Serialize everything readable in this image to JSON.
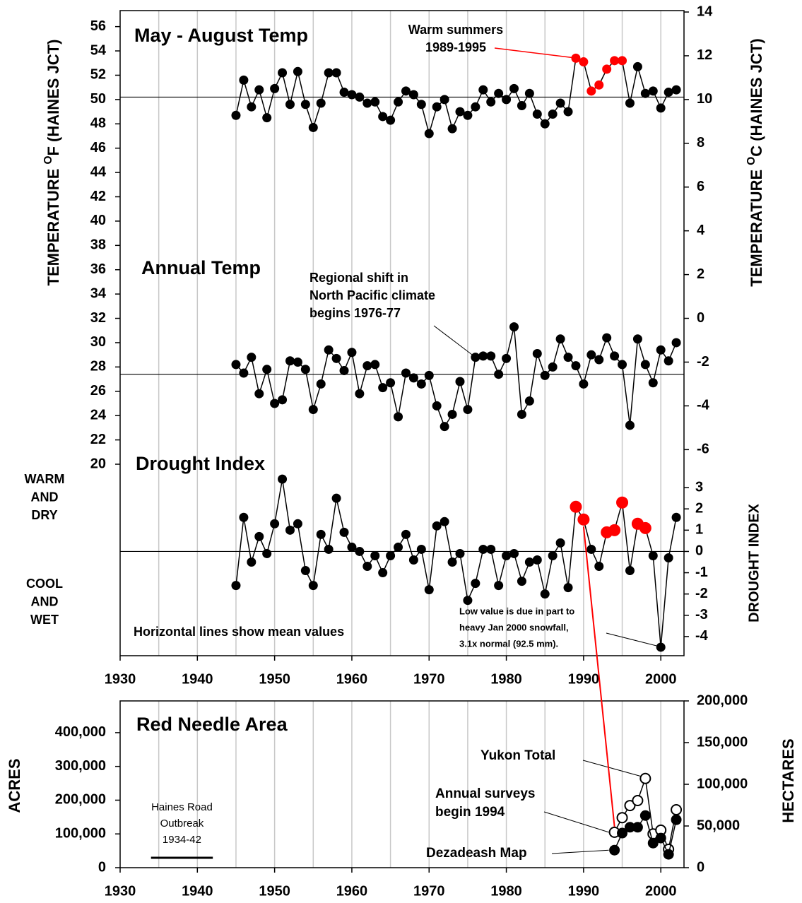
{
  "chart_data": [
    {
      "type": "line",
      "xlim": [
        1930,
        2003
      ],
      "xgrid": [
        1935,
        1940,
        1945,
        1950,
        1955,
        1960,
        1965,
        1970,
        1975,
        1980,
        1985,
        1990,
        1995,
        2000
      ],
      "ylim": [
        20,
        57.2
      ],
      "yticks": [
        20,
        22,
        24,
        26,
        28,
        30,
        32,
        34,
        36,
        38,
        40,
        42,
        44,
        46,
        48,
        50,
        52,
        54,
        56
      ],
      "y2lim": [
        -6.667,
        14
      ],
      "y2ticks": [
        -6,
        -4,
        -2,
        0,
        2,
        4,
        6,
        8,
        10,
        12,
        14
      ],
      "ylabel": [
        "TEMPERATURE ",
        "O",
        "F  (HAINES JCT)"
      ],
      "y2label": [
        "TEMPERATURE ",
        "O",
        "C  (HAINES JCT)"
      ],
      "x": [
        1945,
        1946,
        1947,
        1948,
        1949,
        1950,
        1951,
        1952,
        1953,
        1954,
        1955,
        1956,
        1957,
        1958,
        1959,
        1960,
        1961,
        1962,
        1963,
        1964,
        1965,
        1966,
        1967,
        1968,
        1969,
        1970,
        1971,
        1972,
        1973,
        1974,
        1975,
        1976,
        1977,
        1978,
        1979,
        1980,
        1981,
        1982,
        1983,
        1984,
        1985,
        1986,
        1987,
        1988,
        1989,
        1990,
        1991,
        1992,
        1993,
        1994,
        1995,
        1996,
        1997,
        1998,
        1999,
        2000,
        2001,
        2002
      ],
      "series": [
        {
          "name": "May - August Temp",
          "color": "#000000",
          "mean": 50.2,
          "highlight_x": [
            1989,
            1990,
            1991,
            1992,
            1993,
            1994,
            1995
          ],
          "highlight_color": "#ff0000",
          "values": [
            48.7,
            51.6,
            49.4,
            50.8,
            48.5,
            50.9,
            52.2,
            49.6,
            52.3,
            49.6,
            47.7,
            49.7,
            52.2,
            52.2,
            50.6,
            50.4,
            50.2,
            49.7,
            49.8,
            48.6,
            48.3,
            49.8,
            50.7,
            50.4,
            49.6,
            47.2,
            49.4,
            50.0,
            47.6,
            49.0,
            48.7,
            49.4,
            50.8,
            49.8,
            50.5,
            50.0,
            50.9,
            49.5,
            50.5,
            48.8,
            48.0,
            48.8,
            49.7,
            49.0,
            53.4,
            53.1,
            50.7,
            51.2,
            52.5,
            53.2,
            53.2,
            49.7,
            52.7,
            50.5,
            50.7,
            49.3,
            50.6,
            50.8
          ]
        },
        {
          "name": "Annual Temp",
          "color": "#000000",
          "mean": 27.4,
          "values": [
            28.2,
            27.5,
            28.8,
            25.8,
            27.8,
            25.0,
            25.3,
            28.5,
            28.4,
            27.8,
            24.5,
            26.6,
            29.4,
            28.7,
            27.7,
            29.2,
            25.8,
            28.1,
            28.2,
            26.3,
            26.7,
            23.9,
            27.5,
            27.1,
            26.6,
            27.3,
            24.8,
            23.1,
            24.1,
            26.8,
            24.5,
            28.8,
            28.9,
            28.9,
            27.4,
            28.7,
            31.3,
            24.1,
            25.2,
            29.1,
            27.3,
            28.0,
            30.3,
            28.8,
            28.1,
            26.6,
            29.0,
            28.6,
            30.4,
            28.9,
            28.2,
            23.2,
            30.3,
            28.2,
            26.7,
            29.4,
            28.5,
            30.0
          ]
        }
      ],
      "annotations": [
        {
          "text": [
            "Warm summers",
            "1989-1995"
          ],
          "color": "#ff0000"
        },
        {
          "text": [
            "Regional shift in",
            "North Pacific climate",
            "begins 1976-77"
          ]
        }
      ]
    },
    {
      "type": "line",
      "title": "Drought Index",
      "xlim": [
        1930,
        2003
      ],
      "xticks": [
        1930,
        1940,
        1950,
        1960,
        1970,
        1980,
        1990,
        2000
      ],
      "ylim": [
        -4.9,
        4
      ],
      "yticks": [
        -4,
        -3,
        -2,
        -1,
        0,
        1,
        2,
        3
      ],
      "ylabel": "DROUGHT INDEX",
      "x": [
        1945,
        1946,
        1947,
        1948,
        1949,
        1950,
        1951,
        1952,
        1953,
        1954,
        1955,
        1956,
        1957,
        1958,
        1959,
        1960,
        1961,
        1962,
        1963,
        1964,
        1965,
        1966,
        1967,
        1968,
        1969,
        1970,
        1971,
        1972,
        1973,
        1974,
        1975,
        1976,
        1977,
        1978,
        1979,
        1980,
        1981,
        1982,
        1983,
        1984,
        1985,
        1986,
        1987,
        1988,
        1989,
        1990,
        1991,
        1992,
        1993,
        1994,
        1995,
        1996,
        1997,
        1998,
        1999,
        2000,
        2001,
        2002
      ],
      "series": [
        {
          "color": "#000000",
          "mean": 0,
          "highlight_x": [
            1989,
            1990,
            1993,
            1994,
            1995,
            1997,
            1998
          ],
          "highlight_color": "#ff0000",
          "values": [
            -1.6,
            1.6,
            -0.5,
            0.7,
            -0.1,
            1.3,
            3.4,
            1.0,
            1.3,
            -0.9,
            -1.6,
            0.8,
            0.1,
            2.5,
            0.9,
            0.2,
            0.0,
            -0.7,
            -0.2,
            -1.0,
            -0.2,
            0.2,
            0.8,
            -0.4,
            0.1,
            -1.8,
            1.2,
            1.4,
            -0.5,
            -0.1,
            -2.3,
            -1.5,
            0.1,
            0.1,
            -1.6,
            -0.2,
            -0.1,
            -1.4,
            -0.5,
            -0.4,
            -2.0,
            -0.2,
            0.4,
            -1.7,
            2.1,
            1.5,
            0.1,
            -0.7,
            0.9,
            1.0,
            2.3,
            -0.9,
            1.3,
            1.1,
            -0.2,
            -4.5,
            -0.3,
            1.6
          ]
        }
      ],
      "side_labels": [
        [
          "WARM",
          "AND",
          "DRY"
        ],
        [
          "COOL",
          "AND",
          "WET"
        ]
      ],
      "annotations": [
        {
          "text": [
            "Horizontal lines show mean values"
          ]
        },
        {
          "text": [
            "Low value is due in part to",
            "heavy Jan 2000 snowfall,",
            "3.1x normal (92.5 mm)."
          ]
        }
      ]
    },
    {
      "type": "line",
      "title": "Red Needle Area",
      "xlim": [
        1930,
        2003
      ],
      "xticks": [
        1930,
        1940,
        1950,
        1960,
        1970,
        1980,
        1990,
        2000
      ],
      "xgrid": [
        1935,
        1940,
        1945,
        1950,
        1955,
        1960,
        1965,
        1970,
        1975,
        1980,
        1985,
        1990,
        1995,
        2000
      ],
      "ylim": [
        0,
        494000
      ],
      "yticks": [
        0,
        {
          "value": 100000,
          "label": "100,000"
        },
        {
          "value": 200000,
          "label": "200,000"
        },
        {
          "value": 300000,
          "label": "300,000"
        },
        {
          "value": 400000,
          "label": "400,000"
        }
      ],
      "ylabel": "ACRES",
      "y2lim": [
        0,
        200000
      ],
      "y2ticks": [
        0,
        {
          "value": 50000,
          "label": "50,000"
        },
        {
          "value": 100000,
          "label": "100,000"
        },
        {
          "value": 150000,
          "label": "150,000"
        },
        {
          "value": 200000,
          "label": "200,000"
        }
      ],
      "y2label": "HECTARES",
      "x": [
        1994,
        1995,
        1996,
        1997,
        1998,
        1999,
        2000,
        2001,
        2002
      ],
      "series": [
        {
          "name": "Yukon Total",
          "color": "#000000",
          "marker": "open",
          "axis": "y2",
          "values": [
            42500,
            60000,
            74500,
            80500,
            107000,
            40500,
            45000,
            22000,
            69500
          ]
        },
        {
          "name": "Dezadeash Map",
          "color": "#000000",
          "marker": "filled",
          "axis": "y2",
          "values": [
            21000,
            41500,
            48500,
            48500,
            62500,
            29500,
            35500,
            16000,
            57500
          ]
        }
      ],
      "annotations": [
        {
          "text": [
            "Annual surveys",
            "begin 1994"
          ]
        },
        {
          "text": [
            "Haines Road",
            "Outbreak",
            "1934-42"
          ],
          "x": [
            1934,
            1942
          ]
        }
      ]
    }
  ]
}
